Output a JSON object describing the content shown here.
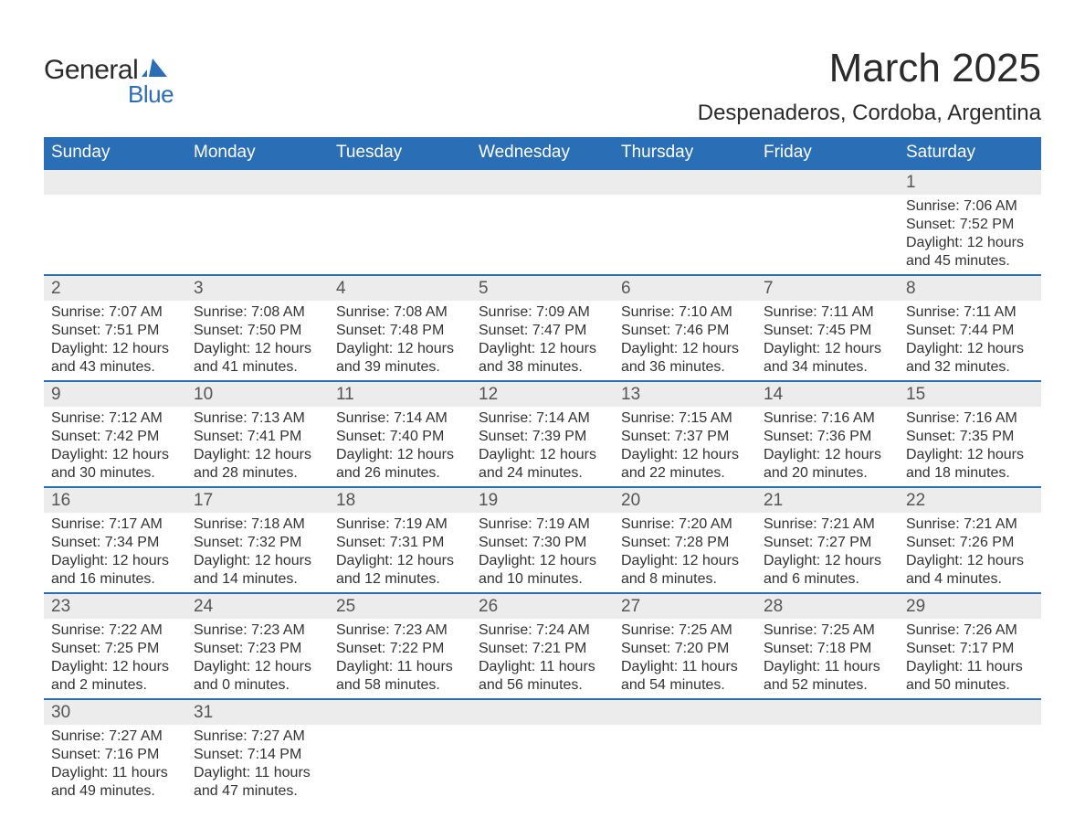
{
  "logo": {
    "text1": "General",
    "text2": "Blue",
    "accent": "#2a6eb5"
  },
  "title": "March 2025",
  "subtitle": "Despenaderos, Cordoba, Argentina",
  "colors": {
    "header_bg": "#2a6eb5",
    "header_fg": "#ffffff",
    "daynum_bg": "#ececec",
    "row_border": "#2a6eb5",
    "text": "#333333"
  },
  "day_headers": [
    "Sunday",
    "Monday",
    "Tuesday",
    "Wednesday",
    "Thursday",
    "Friday",
    "Saturday"
  ],
  "weeks": [
    [
      null,
      null,
      null,
      null,
      null,
      null,
      {
        "n": "1",
        "sr": "Sunrise: 7:06 AM",
        "ss": "Sunset: 7:52 PM",
        "d1": "Daylight: 12 hours",
        "d2": "and 45 minutes."
      }
    ],
    [
      {
        "n": "2",
        "sr": "Sunrise: 7:07 AM",
        "ss": "Sunset: 7:51 PM",
        "d1": "Daylight: 12 hours",
        "d2": "and 43 minutes."
      },
      {
        "n": "3",
        "sr": "Sunrise: 7:08 AM",
        "ss": "Sunset: 7:50 PM",
        "d1": "Daylight: 12 hours",
        "d2": "and 41 minutes."
      },
      {
        "n": "4",
        "sr": "Sunrise: 7:08 AM",
        "ss": "Sunset: 7:48 PM",
        "d1": "Daylight: 12 hours",
        "d2": "and 39 minutes."
      },
      {
        "n": "5",
        "sr": "Sunrise: 7:09 AM",
        "ss": "Sunset: 7:47 PM",
        "d1": "Daylight: 12 hours",
        "d2": "and 38 minutes."
      },
      {
        "n": "6",
        "sr": "Sunrise: 7:10 AM",
        "ss": "Sunset: 7:46 PM",
        "d1": "Daylight: 12 hours",
        "d2": "and 36 minutes."
      },
      {
        "n": "7",
        "sr": "Sunrise: 7:11 AM",
        "ss": "Sunset: 7:45 PM",
        "d1": "Daylight: 12 hours",
        "d2": "and 34 minutes."
      },
      {
        "n": "8",
        "sr": "Sunrise: 7:11 AM",
        "ss": "Sunset: 7:44 PM",
        "d1": "Daylight: 12 hours",
        "d2": "and 32 minutes."
      }
    ],
    [
      {
        "n": "9",
        "sr": "Sunrise: 7:12 AM",
        "ss": "Sunset: 7:42 PM",
        "d1": "Daylight: 12 hours",
        "d2": "and 30 minutes."
      },
      {
        "n": "10",
        "sr": "Sunrise: 7:13 AM",
        "ss": "Sunset: 7:41 PM",
        "d1": "Daylight: 12 hours",
        "d2": "and 28 minutes."
      },
      {
        "n": "11",
        "sr": "Sunrise: 7:14 AM",
        "ss": "Sunset: 7:40 PM",
        "d1": "Daylight: 12 hours",
        "d2": "and 26 minutes."
      },
      {
        "n": "12",
        "sr": "Sunrise: 7:14 AM",
        "ss": "Sunset: 7:39 PM",
        "d1": "Daylight: 12 hours",
        "d2": "and 24 minutes."
      },
      {
        "n": "13",
        "sr": "Sunrise: 7:15 AM",
        "ss": "Sunset: 7:37 PM",
        "d1": "Daylight: 12 hours",
        "d2": "and 22 minutes."
      },
      {
        "n": "14",
        "sr": "Sunrise: 7:16 AM",
        "ss": "Sunset: 7:36 PM",
        "d1": "Daylight: 12 hours",
        "d2": "and 20 minutes."
      },
      {
        "n": "15",
        "sr": "Sunrise: 7:16 AM",
        "ss": "Sunset: 7:35 PM",
        "d1": "Daylight: 12 hours",
        "d2": "and 18 minutes."
      }
    ],
    [
      {
        "n": "16",
        "sr": "Sunrise: 7:17 AM",
        "ss": "Sunset: 7:34 PM",
        "d1": "Daylight: 12 hours",
        "d2": "and 16 minutes."
      },
      {
        "n": "17",
        "sr": "Sunrise: 7:18 AM",
        "ss": "Sunset: 7:32 PM",
        "d1": "Daylight: 12 hours",
        "d2": "and 14 minutes."
      },
      {
        "n": "18",
        "sr": "Sunrise: 7:19 AM",
        "ss": "Sunset: 7:31 PM",
        "d1": "Daylight: 12 hours",
        "d2": "and 12 minutes."
      },
      {
        "n": "19",
        "sr": "Sunrise: 7:19 AM",
        "ss": "Sunset: 7:30 PM",
        "d1": "Daylight: 12 hours",
        "d2": "and 10 minutes."
      },
      {
        "n": "20",
        "sr": "Sunrise: 7:20 AM",
        "ss": "Sunset: 7:28 PM",
        "d1": "Daylight: 12 hours",
        "d2": "and 8 minutes."
      },
      {
        "n": "21",
        "sr": "Sunrise: 7:21 AM",
        "ss": "Sunset: 7:27 PM",
        "d1": "Daylight: 12 hours",
        "d2": "and 6 minutes."
      },
      {
        "n": "22",
        "sr": "Sunrise: 7:21 AM",
        "ss": "Sunset: 7:26 PM",
        "d1": "Daylight: 12 hours",
        "d2": "and 4 minutes."
      }
    ],
    [
      {
        "n": "23",
        "sr": "Sunrise: 7:22 AM",
        "ss": "Sunset: 7:25 PM",
        "d1": "Daylight: 12 hours",
        "d2": "and 2 minutes."
      },
      {
        "n": "24",
        "sr": "Sunrise: 7:23 AM",
        "ss": "Sunset: 7:23 PM",
        "d1": "Daylight: 12 hours",
        "d2": "and 0 minutes."
      },
      {
        "n": "25",
        "sr": "Sunrise: 7:23 AM",
        "ss": "Sunset: 7:22 PM",
        "d1": "Daylight: 11 hours",
        "d2": "and 58 minutes."
      },
      {
        "n": "26",
        "sr": "Sunrise: 7:24 AM",
        "ss": "Sunset: 7:21 PM",
        "d1": "Daylight: 11 hours",
        "d2": "and 56 minutes."
      },
      {
        "n": "27",
        "sr": "Sunrise: 7:25 AM",
        "ss": "Sunset: 7:20 PM",
        "d1": "Daylight: 11 hours",
        "d2": "and 54 minutes."
      },
      {
        "n": "28",
        "sr": "Sunrise: 7:25 AM",
        "ss": "Sunset: 7:18 PM",
        "d1": "Daylight: 11 hours",
        "d2": "and 52 minutes."
      },
      {
        "n": "29",
        "sr": "Sunrise: 7:26 AM",
        "ss": "Sunset: 7:17 PM",
        "d1": "Daylight: 11 hours",
        "d2": "and 50 minutes."
      }
    ],
    [
      {
        "n": "30",
        "sr": "Sunrise: 7:27 AM",
        "ss": "Sunset: 7:16 PM",
        "d1": "Daylight: 11 hours",
        "d2": "and 49 minutes."
      },
      {
        "n": "31",
        "sr": "Sunrise: 7:27 AM",
        "ss": "Sunset: 7:14 PM",
        "d1": "Daylight: 11 hours",
        "d2": "and 47 minutes."
      },
      null,
      null,
      null,
      null,
      null
    ]
  ]
}
